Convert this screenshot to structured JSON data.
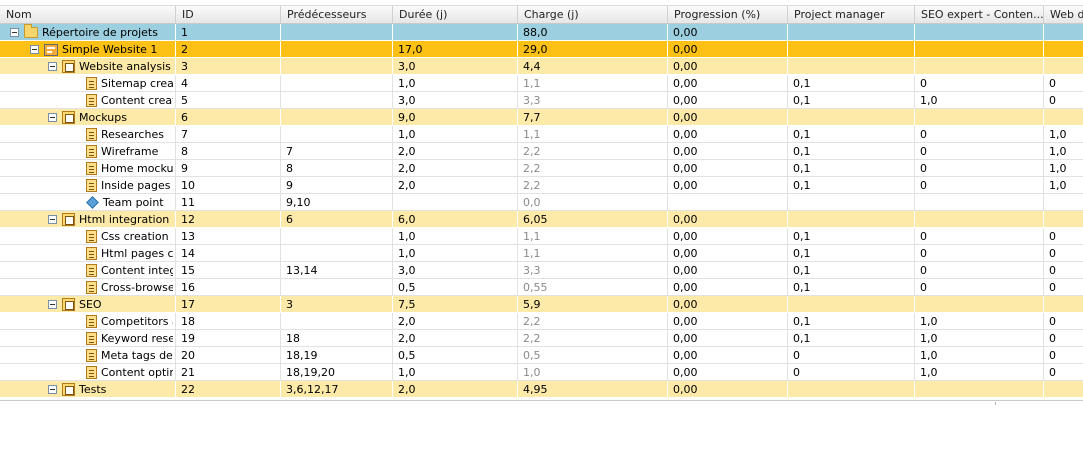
{
  "columns": [
    "Nom",
    "ID",
    "Prédécesseurs",
    "Durée (j)",
    "Charge (j)",
    "Progression (%)",
    "Project manager",
    "SEO expert - Conten...",
    "Web d"
  ],
  "rows": [
    {
      "level": 0,
      "icon": "folder-icon",
      "expander": true,
      "name": "Répertoire de projets",
      "id": "1",
      "pred": "",
      "duree": "",
      "charge": "88,0",
      "prog": "0,00",
      "pm": "",
      "seo": "",
      "web": ""
    },
    {
      "level": 1,
      "icon": "project-icon",
      "expander": true,
      "name": "Simple Website 1",
      "id": "2",
      "pred": "",
      "duree": "17,0",
      "charge": "29,0",
      "prog": "0,00",
      "pm": "",
      "seo": "",
      "web": ""
    },
    {
      "level": 2,
      "icon": "summary-task-icon",
      "expander": true,
      "name": "Website analysis",
      "id": "3",
      "pred": "",
      "duree": "3,0",
      "charge": "4,4",
      "prog": "0,00",
      "pm": "",
      "seo": "",
      "web": ""
    },
    {
      "level": 3,
      "icon": "task-icon",
      "expander": false,
      "name": "Sitemap creatio",
      "id": "4",
      "pred": "",
      "duree": "1,0",
      "charge": "1,1",
      "prog": "0,00",
      "pm": "0,1",
      "seo": "0",
      "web": "0"
    },
    {
      "level": 3,
      "icon": "task-icon",
      "expander": false,
      "name": "Content creatio",
      "id": "5",
      "pred": "",
      "duree": "3,0",
      "charge": "3,3",
      "prog": "0,00",
      "pm": "0,1",
      "seo": "1,0",
      "web": "0"
    },
    {
      "level": 2,
      "icon": "summary-task-icon",
      "expander": true,
      "name": "Mockups",
      "id": "6",
      "pred": "",
      "duree": "9,0",
      "charge": "7,7",
      "prog": "0,00",
      "pm": "",
      "seo": "",
      "web": ""
    },
    {
      "level": 3,
      "icon": "task-icon",
      "expander": false,
      "name": "Researches",
      "id": "7",
      "pred": "",
      "duree": "1,0",
      "charge": "1,1",
      "prog": "0,00",
      "pm": "0,1",
      "seo": "0",
      "web": "1,0"
    },
    {
      "level": 3,
      "icon": "task-icon",
      "expander": false,
      "name": "Wireframe",
      "id": "8",
      "pred": "7",
      "duree": "2,0",
      "charge": "2,2",
      "prog": "0,00",
      "pm": "0,1",
      "seo": "0",
      "web": "1,0"
    },
    {
      "level": 3,
      "icon": "task-icon",
      "expander": false,
      "name": "Home mockup",
      "id": "9",
      "pred": "8",
      "duree": "2,0",
      "charge": "2,2",
      "prog": "0,00",
      "pm": "0,1",
      "seo": "0",
      "web": "1,0"
    },
    {
      "level": 3,
      "icon": "task-icon",
      "expander": false,
      "name": "Inside pages",
      "id": "10",
      "pred": "9",
      "duree": "2,0",
      "charge": "2,2",
      "prog": "0,00",
      "pm": "0,1",
      "seo": "0",
      "web": "1,0"
    },
    {
      "level": 3,
      "icon": "milestone-icon",
      "expander": false,
      "name": "Team point",
      "id": "11",
      "pred": "9,10",
      "duree": "",
      "charge": "0,0",
      "prog": "",
      "pm": "",
      "seo": "",
      "web": ""
    },
    {
      "level": 2,
      "icon": "summary-task-icon",
      "expander": true,
      "name": "Html integration",
      "id": "12",
      "pred": "6",
      "duree": "6,0",
      "charge": "6,05",
      "prog": "0,00",
      "pm": "",
      "seo": "",
      "web": ""
    },
    {
      "level": 3,
      "icon": "task-icon",
      "expander": false,
      "name": "Css creation",
      "id": "13",
      "pred": "",
      "duree": "1,0",
      "charge": "1,1",
      "prog": "0,00",
      "pm": "0,1",
      "seo": "0",
      "web": "0"
    },
    {
      "level": 3,
      "icon": "task-icon",
      "expander": false,
      "name": "Html pages crea",
      "id": "14",
      "pred": "",
      "duree": "1,0",
      "charge": "1,1",
      "prog": "0,00",
      "pm": "0,1",
      "seo": "0",
      "web": "0"
    },
    {
      "level": 3,
      "icon": "task-icon",
      "expander": false,
      "name": "Content integra",
      "id": "15",
      "pred": "13,14",
      "duree": "3,0",
      "charge": "3,3",
      "prog": "0,00",
      "pm": "0,1",
      "seo": "0",
      "web": "0"
    },
    {
      "level": 3,
      "icon": "task-icon",
      "expander": false,
      "name": "Cross-browsers",
      "id": "16",
      "pred": "",
      "duree": "0,5",
      "charge": "0,55",
      "prog": "0,00",
      "pm": "0,1",
      "seo": "0",
      "web": "0"
    },
    {
      "level": 2,
      "icon": "summary-task-icon",
      "expander": true,
      "name": "SEO",
      "id": "17",
      "pred": "3",
      "duree": "7,5",
      "charge": "5,9",
      "prog": "0,00",
      "pm": "",
      "seo": "",
      "web": ""
    },
    {
      "level": 3,
      "icon": "task-icon",
      "expander": false,
      "name": "Competitors an",
      "id": "18",
      "pred": "",
      "duree": "2,0",
      "charge": "2,2",
      "prog": "0,00",
      "pm": "0,1",
      "seo": "1,0",
      "web": "0"
    },
    {
      "level": 3,
      "icon": "task-icon",
      "expander": false,
      "name": "Keyword resea",
      "id": "19",
      "pred": "18",
      "duree": "2,0",
      "charge": "2,2",
      "prog": "0,00",
      "pm": "0,1",
      "seo": "1,0",
      "web": "0"
    },
    {
      "level": 3,
      "icon": "task-icon",
      "expander": false,
      "name": "Meta tags defir",
      "id": "20",
      "pred": "18,19",
      "duree": "0,5",
      "charge": "0,5",
      "prog": "0,00",
      "pm": "0",
      "seo": "1,0",
      "web": "0"
    },
    {
      "level": 3,
      "icon": "task-icon",
      "expander": false,
      "name": "Content optimiz",
      "id": "21",
      "pred": "18,19,20",
      "duree": "1,0",
      "charge": "1,0",
      "prog": "0,00",
      "pm": "0",
      "seo": "1,0",
      "web": "0"
    },
    {
      "level": 2,
      "icon": "summary-task-icon",
      "expander": true,
      "name": "Tests",
      "id": "22",
      "pred": "3,6,12,17",
      "duree": "2,0",
      "charge": "4,95",
      "prog": "0,00",
      "pm": "",
      "seo": "",
      "web": ""
    }
  ],
  "colors": {
    "root_row": "#9ccfe0",
    "project_row": "#fcc114",
    "summary_row": "#fde9a8",
    "task_row": "#ffffff"
  }
}
